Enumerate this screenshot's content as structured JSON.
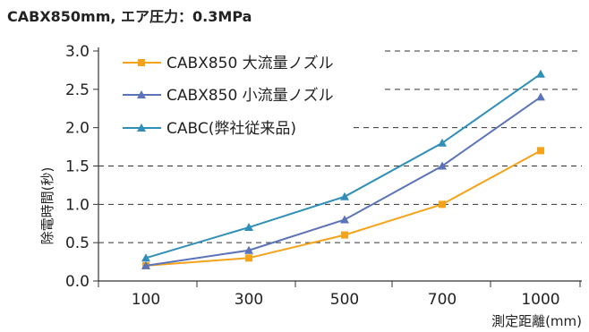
{
  "chart_data": {
    "type": "line",
    "title": "CABX850mm, エア圧力：0.3MPa",
    "xlabel": "測定距離(mm)",
    "ylabel": "除電時間(秒)",
    "categories": [
      "100",
      "300",
      "500",
      "700",
      "1000"
    ],
    "ylim": [
      0,
      3.0
    ],
    "yticks": [
      "0.0",
      "0.5",
      "1.0",
      "1.5",
      "2.0",
      "2.5",
      "3.0"
    ],
    "grid": "dashed horizontal",
    "legend": "top-left",
    "series": [
      {
        "name": "CABX850 大流量ノズル",
        "color": "#f5a31a",
        "marker": "square",
        "values": [
          0.2,
          0.3,
          0.6,
          1.0,
          1.7
        ]
      },
      {
        "name": "CABX850 小流量ノズル",
        "color": "#5b73b8",
        "marker": "triangle",
        "values": [
          0.2,
          0.4,
          0.8,
          1.5,
          2.4
        ]
      },
      {
        "name": "CABC(弊社従来品)",
        "color": "#2f8fb8",
        "marker": "triangle",
        "values": [
          0.3,
          0.7,
          1.1,
          1.8,
          2.7
        ]
      }
    ]
  }
}
